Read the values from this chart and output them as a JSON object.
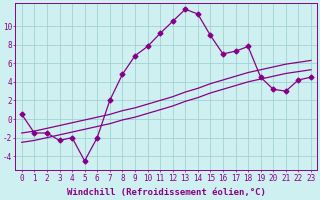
{
  "xlabel": "Windchill (Refroidissement éolien,°C)",
  "background_color": "#cff0f0",
  "line_color": "#880088",
  "grid_color": "#99cccc",
  "x_ticks": [
    0,
    1,
    2,
    3,
    4,
    5,
    6,
    7,
    8,
    9,
    10,
    11,
    12,
    13,
    14,
    15,
    16,
    17,
    18,
    19,
    20,
    21,
    22,
    23
  ],
  "y_ticks": [
    -4,
    -2,
    0,
    2,
    4,
    6,
    8,
    10
  ],
  "ylim": [
    -5.5,
    12.5
  ],
  "xlim": [
    -0.5,
    23.5
  ],
  "line1_x": [
    0,
    1,
    2,
    3,
    4,
    5,
    6,
    7,
    8,
    9,
    10,
    11,
    12,
    13,
    14,
    15,
    16,
    17,
    18,
    19,
    20,
    21,
    22,
    23
  ],
  "line1_y": [
    0.5,
    -1.5,
    -1.5,
    -2.3,
    -2.0,
    -4.5,
    -2.0,
    2.0,
    4.8,
    6.8,
    7.8,
    9.2,
    10.5,
    11.8,
    11.3,
    9.0,
    7.0,
    7.3,
    7.8,
    4.5,
    3.2,
    3.0,
    4.2,
    4.5
  ],
  "line2_x": [
    0,
    1,
    2,
    3,
    4,
    5,
    6,
    7,
    8,
    9,
    10,
    11,
    12,
    13,
    14,
    15,
    16,
    17,
    18,
    19,
    20,
    21,
    22,
    23
  ],
  "line2_y": [
    -1.5,
    -1.3,
    -1.0,
    -0.7,
    -0.4,
    -0.1,
    0.2,
    0.5,
    0.9,
    1.2,
    1.6,
    2.0,
    2.4,
    2.9,
    3.3,
    3.8,
    4.2,
    4.6,
    5.0,
    5.3,
    5.6,
    5.9,
    6.1,
    6.3
  ],
  "line3_x": [
    0,
    1,
    2,
    3,
    4,
    5,
    6,
    7,
    8,
    9,
    10,
    11,
    12,
    13,
    14,
    15,
    16,
    17,
    18,
    19,
    20,
    21,
    22,
    23
  ],
  "line3_y": [
    -2.5,
    -2.3,
    -2.0,
    -1.7,
    -1.4,
    -1.1,
    -0.8,
    -0.5,
    -0.1,
    0.2,
    0.6,
    1.0,
    1.4,
    1.9,
    2.3,
    2.8,
    3.2,
    3.6,
    4.0,
    4.3,
    4.6,
    4.9,
    5.1,
    5.3
  ],
  "tick_fontsize": 5.5,
  "xlabel_fontsize": 6.5
}
